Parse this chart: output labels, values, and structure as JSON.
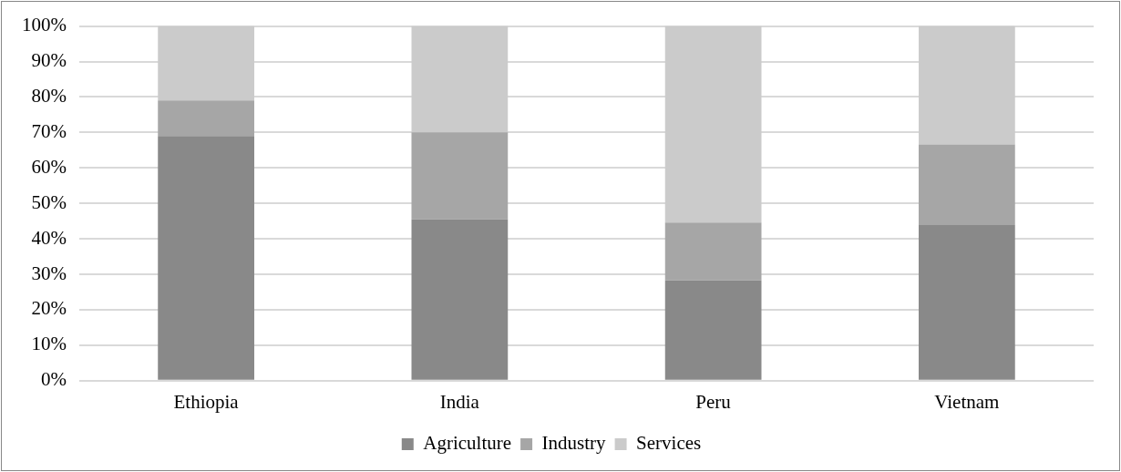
{
  "chart_data": {
    "type": "bar",
    "stacked": true,
    "categories": [
      "Ethiopia",
      "India",
      "Peru",
      "Vietnam"
    ],
    "series": [
      {
        "name": "Agriculture",
        "color": "#898989",
        "values": [
          69,
          45.5,
          28.3,
          43.9
        ]
      },
      {
        "name": "Industry",
        "color": "#a6a6a6",
        "values": [
          10,
          24.5,
          16.3,
          22.7
        ]
      },
      {
        "name": "Services",
        "color": "#cbcbcb",
        "values": [
          21,
          30,
          55.4,
          33.4
        ]
      }
    ],
    "ylim": [
      0,
      100
    ],
    "yticks": [
      {
        "value": 0,
        "label": "0%"
      },
      {
        "value": 10,
        "label": "10%"
      },
      {
        "value": 20,
        "label": "20%"
      },
      {
        "value": 30,
        "label": "30%"
      },
      {
        "value": 40,
        "label": "40%"
      },
      {
        "value": 50,
        "label": "50%"
      },
      {
        "value": 60,
        "label": "60%"
      },
      {
        "value": 70,
        "label": "70%"
      },
      {
        "value": 80,
        "label": "80%"
      },
      {
        "value": 90,
        "label": "90%"
      },
      {
        "value": 100,
        "label": "100%"
      }
    ],
    "grid": "y",
    "legend": "bottom"
  }
}
